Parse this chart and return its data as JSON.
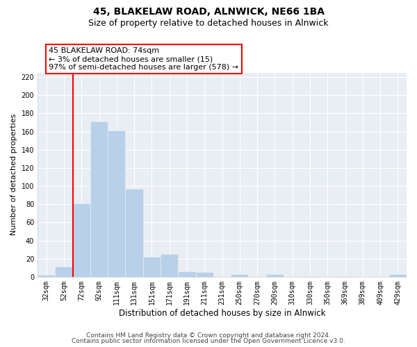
{
  "title": "45, BLAKELAW ROAD, ALNWICK, NE66 1BA",
  "subtitle": "Size of property relative to detached houses in Alnwick",
  "xlabel": "Distribution of detached houses by size in Alnwick",
  "ylabel": "Number of detached properties",
  "bar_labels": [
    "32sqm",
    "52sqm",
    "72sqm",
    "92sqm",
    "111sqm",
    "131sqm",
    "151sqm",
    "171sqm",
    "191sqm",
    "211sqm",
    "231sqm",
    "250sqm",
    "270sqm",
    "290sqm",
    "310sqm",
    "330sqm",
    "350sqm",
    "369sqm",
    "389sqm",
    "409sqm",
    "429sqm"
  ],
  "bar_values": [
    2,
    11,
    81,
    171,
    161,
    97,
    22,
    25,
    6,
    5,
    0,
    3,
    0,
    3,
    0,
    1,
    0,
    1,
    0,
    0,
    3
  ],
  "bar_color": "#b8d0e8",
  "ylim": [
    0,
    225
  ],
  "yticks": [
    0,
    20,
    40,
    60,
    80,
    100,
    120,
    140,
    160,
    180,
    200,
    220
  ],
  "annotation_box_text": "45 BLAKELAW ROAD: 74sqm\n← 3% of detached houses are smaller (15)\n97% of semi-detached houses are larger (578) →",
  "vline_x_index": 2,
  "footer_line1": "Contains HM Land Registry data © Crown copyright and database right 2024.",
  "footer_line2": "Contains public sector information licensed under the Open Government Licence v3.0.",
  "background_color": "#ffffff",
  "plot_bg_color": "#e8eef4",
  "grid_color": "#ffffff",
  "title_fontsize": 10,
  "subtitle_fontsize": 9,
  "xlabel_fontsize": 8.5,
  "ylabel_fontsize": 8,
  "tick_fontsize": 7,
  "annotation_fontsize": 8,
  "footer_fontsize": 6.5
}
